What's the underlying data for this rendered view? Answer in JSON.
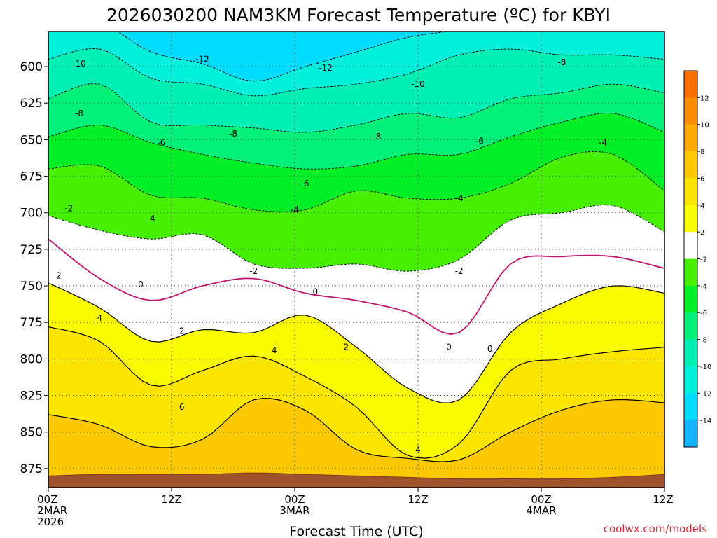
{
  "chart_data": {
    "type": "heatmap",
    "title": "2026030200 NAM3KM Forecast Temperature (ºC) for KBYI",
    "xlabel": "Forecast Time (UTC)",
    "ylabel": "",
    "credit": "coolwx.com/models",
    "x_ticks": [
      {
        "hour": 0,
        "lines": [
          "00Z",
          "2MAR",
          "2026"
        ]
      },
      {
        "hour": 12,
        "lines": [
          "12Z"
        ]
      },
      {
        "hour": 24,
        "lines": [
          "00Z",
          "3MAR"
        ]
      },
      {
        "hour": 36,
        "lines": [
          "12Z"
        ]
      },
      {
        "hour": 48,
        "lines": [
          "00Z",
          "4MAR"
        ]
      },
      {
        "hour": 60,
        "lines": [
          "12Z"
        ]
      }
    ],
    "xlim": [
      0,
      60
    ],
    "y_ticks": [
      600,
      625,
      650,
      675,
      700,
      725,
      750,
      775,
      800,
      825,
      850,
      875
    ],
    "ylim": [
      576,
      888
    ],
    "ground_pressure": [
      880,
      879,
      879,
      879,
      878,
      879,
      880,
      881,
      882,
      882,
      882,
      881,
      879
    ],
    "colorbar": {
      "labels": [
        "12",
        "10",
        "8",
        "6",
        "4",
        "2",
        "-2",
        "-4",
        "-6",
        "-8",
        "-10",
        "-12",
        "-14"
      ],
      "bins": [
        {
          "lo": 12,
          "hi": 14,
          "color": "#fa6e00"
        },
        {
          "lo": 10,
          "hi": 12,
          "color": "#fa8c00"
        },
        {
          "lo": 8,
          "hi": 10,
          "color": "#fcaa00"
        },
        {
          "lo": 6,
          "hi": 8,
          "color": "#fcc800"
        },
        {
          "lo": 4,
          "hi": 6,
          "color": "#fce600"
        },
        {
          "lo": 2,
          "hi": 4,
          "color": "#fcfc00"
        },
        {
          "lo": -2,
          "hi": 2,
          "color": "#ffffff"
        },
        {
          "lo": -4,
          "hi": -2,
          "color": "#46f000"
        },
        {
          "lo": -6,
          "hi": -4,
          "color": "#00f028"
        },
        {
          "lo": -8,
          "hi": -6,
          "color": "#00f078"
        },
        {
          "lo": -10,
          "hi": -8,
          "color": "#00f0b4"
        },
        {
          "lo": -12,
          "hi": -10,
          "color": "#00f0dc"
        },
        {
          "lo": -14,
          "hi": -12,
          "color": "#00dcff"
        },
        {
          "lo": -16,
          "hi": -14,
          "color": "#14b4ff"
        }
      ]
    },
    "hours": [
      0,
      5,
      10,
      15,
      20,
      25,
      30,
      35,
      40,
      45,
      50,
      55,
      60
    ],
    "isotherms": [
      {
        "temp": 6,
        "levels": [
          838,
          845,
          860,
          855,
          828,
          835,
          862,
          868,
          869,
          850,
          835,
          828,
          830
        ]
      },
      {
        "temp": 4,
        "levels": [
          778,
          788,
          818,
          808,
          798,
          812,
          833,
          866,
          858,
          808,
          800,
          795,
          792
        ]
      },
      {
        "temp": 2,
        "levels": [
          748,
          765,
          788,
          780,
          782,
          770,
          792,
          820,
          828,
          782,
          762,
          750,
          755
        ]
      },
      {
        "temp": 0,
        "levels": [
          718,
          745,
          760,
          750,
          745,
          755,
          760,
          768,
          782,
          735,
          730,
          730,
          738
        ]
      },
      {
        "temp": -2,
        "levels": [
          702,
          712,
          718,
          715,
          735,
          738,
          735,
          740,
          732,
          705,
          700,
          695,
          713
        ]
      },
      {
        "temp": -4,
        "levels": [
          670,
          668,
          688,
          690,
          698,
          698,
          685,
          690,
          690,
          680,
          662,
          660,
          685
        ]
      },
      {
        "temp": -6,
        "levels": [
          648,
          640,
          652,
          660,
          666,
          670,
          668,
          660,
          660,
          648,
          638,
          632,
          645
        ]
      },
      {
        "temp": -8,
        "levels": [
          622,
          612,
          638,
          640,
          642,
          645,
          640,
          632,
          635,
          622,
          618,
          612,
          618
        ]
      },
      {
        "temp": -10,
        "levels": [
          595,
          588,
          608,
          612,
          620,
          615,
          612,
          605,
          592,
          588,
          592,
          592,
          595
        ]
      },
      {
        "temp": -12,
        "levels": [
          570,
          570,
          590,
          598,
          610,
          600,
          590,
          580,
          575,
          570,
          570,
          570,
          570
        ]
      }
    ],
    "contour_labels": [
      {
        "text": "-10",
        "hour": 3,
        "p": 598
      },
      {
        "text": "-12",
        "hour": 15,
        "p": 595
      },
      {
        "text": "-12",
        "hour": 27,
        "p": 601
      },
      {
        "text": "-10",
        "hour": 36,
        "p": 612
      },
      {
        "text": "-8",
        "hour": 50,
        "p": 597
      },
      {
        "text": "-8",
        "hour": 3,
        "p": 632
      },
      {
        "text": "-8",
        "hour": 18,
        "p": 646
      },
      {
        "text": "-8",
        "hour": 32,
        "p": 648
      },
      {
        "text": "-6",
        "hour": 11,
        "p": 652
      },
      {
        "text": "-6",
        "hour": 42,
        "p": 651
      },
      {
        "text": "-4",
        "hour": 54,
        "p": 652
      },
      {
        "text": "-6",
        "hour": 25,
        "p": 680
      },
      {
        "text": "-4",
        "hour": 40,
        "p": 690
      },
      {
        "text": "-2",
        "hour": 2,
        "p": 697
      },
      {
        "text": "-4",
        "hour": 10,
        "p": 704
      },
      {
        "text": "-4",
        "hour": 24,
        "p": 698
      },
      {
        "text": "-2",
        "hour": 20,
        "p": 740
      },
      {
        "text": "-2",
        "hour": 40,
        "p": 740
      },
      {
        "text": "2",
        "hour": 1,
        "p": 743
      },
      {
        "text": "0",
        "hour": 9,
        "p": 749
      },
      {
        "text": "0",
        "hour": 26,
        "p": 754
      },
      {
        "text": "0",
        "hour": 39,
        "p": 792
      },
      {
        "text": "0",
        "hour": 43,
        "p": 793
      },
      {
        "text": "4",
        "hour": 5,
        "p": 772
      },
      {
        "text": "2",
        "hour": 13,
        "p": 781
      },
      {
        "text": "2",
        "hour": 29,
        "p": 792
      },
      {
        "text": "4",
        "hour": 22,
        "p": 794
      },
      {
        "text": "6",
        "hour": 13,
        "p": 833
      },
      {
        "text": "4",
        "hour": 36,
        "p": 862
      }
    ]
  }
}
